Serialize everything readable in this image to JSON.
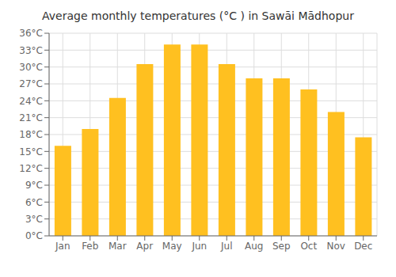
{
  "chart_data": {
    "type": "bar",
    "title": "Average monthly temperatures (°C ) in Sawāi Mādhopur",
    "categories": [
      "Jan",
      "Feb",
      "Mar",
      "Apr",
      "May",
      "Jun",
      "Jul",
      "Aug",
      "Sep",
      "Oct",
      "Nov",
      "Dec"
    ],
    "values": [
      16.0,
      19.0,
      24.5,
      30.5,
      34.0,
      34.0,
      30.5,
      28.0,
      28.0,
      26.0,
      22.0,
      17.5
    ],
    "color": "#FFC020",
    "ylim": [
      0,
      36
    ],
    "yticks": [
      {
        "value": 0,
        "label": "0°C"
      },
      {
        "value": 3,
        "label": "3°C"
      },
      {
        "value": 6,
        "label": "6°C"
      },
      {
        "value": 9,
        "label": "9°C"
      },
      {
        "value": 12,
        "label": "12°C"
      },
      {
        "value": 15,
        "label": "15°C"
      },
      {
        "value": 18,
        "label": "18°C"
      },
      {
        "value": 21,
        "label": "21°C"
      },
      {
        "value": 24,
        "label": "24°C"
      },
      {
        "value": 27,
        "label": "27°C"
      },
      {
        "value": 30,
        "label": "30°C"
      },
      {
        "value": 33,
        "label": "33°C"
      },
      {
        "value": 36,
        "label": "36°C"
      }
    ],
    "grid": true
  }
}
